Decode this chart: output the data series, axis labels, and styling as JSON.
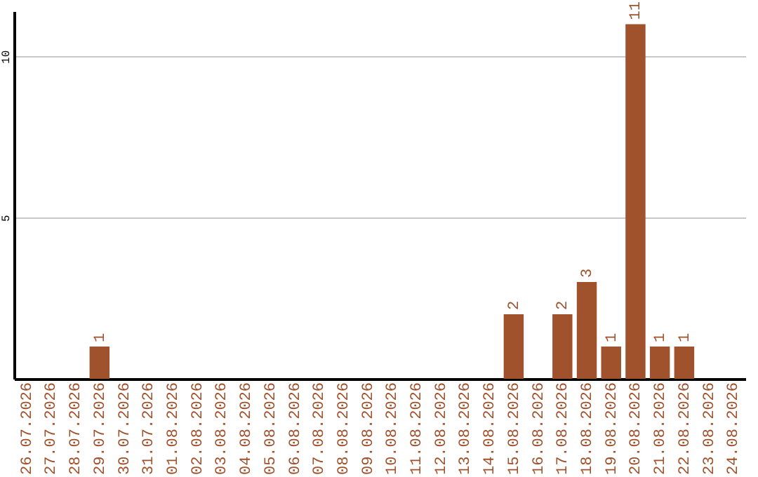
{
  "chart_data": {
    "type": "bar",
    "categories": [
      "26.07.2026",
      "27.07.2026",
      "28.07.2026",
      "29.07.2026",
      "30.07.2026",
      "31.07.2026",
      "01.08.2026",
      "02.08.2026",
      "03.08.2026",
      "04.08.2026",
      "05.08.2026",
      "06.08.2026",
      "07.08.2026",
      "08.08.2026",
      "09.08.2026",
      "10.08.2026",
      "11.08.2026",
      "12.08.2026",
      "13.08.2026",
      "14.08.2026",
      "15.08.2026",
      "16.08.2026",
      "17.08.2026",
      "18.08.2026",
      "19.08.2026",
      "20.08.2026",
      "21.08.2026",
      "22.08.2026",
      "23.08.2026",
      "24.08.2026"
    ],
    "values": [
      0,
      0,
      0,
      1,
      0,
      0,
      0,
      0,
      0,
      0,
      0,
      0,
      0,
      0,
      0,
      0,
      0,
      0,
      0,
      0,
      2,
      0,
      2,
      3,
      1,
      11,
      1,
      1,
      0,
      0
    ],
    "value_labels": [
      null,
      null,
      null,
      "1",
      null,
      null,
      null,
      null,
      null,
      null,
      null,
      null,
      null,
      null,
      null,
      null,
      null,
      null,
      null,
      null,
      "2",
      null,
      "2",
      "3",
      "1",
      "11",
      "1",
      "1",
      null,
      null
    ],
    "color": "#a0522d",
    "ylim": [
      0,
      11.4
    ],
    "yticks": [
      5,
      10
    ],
    "grid": "y"
  }
}
